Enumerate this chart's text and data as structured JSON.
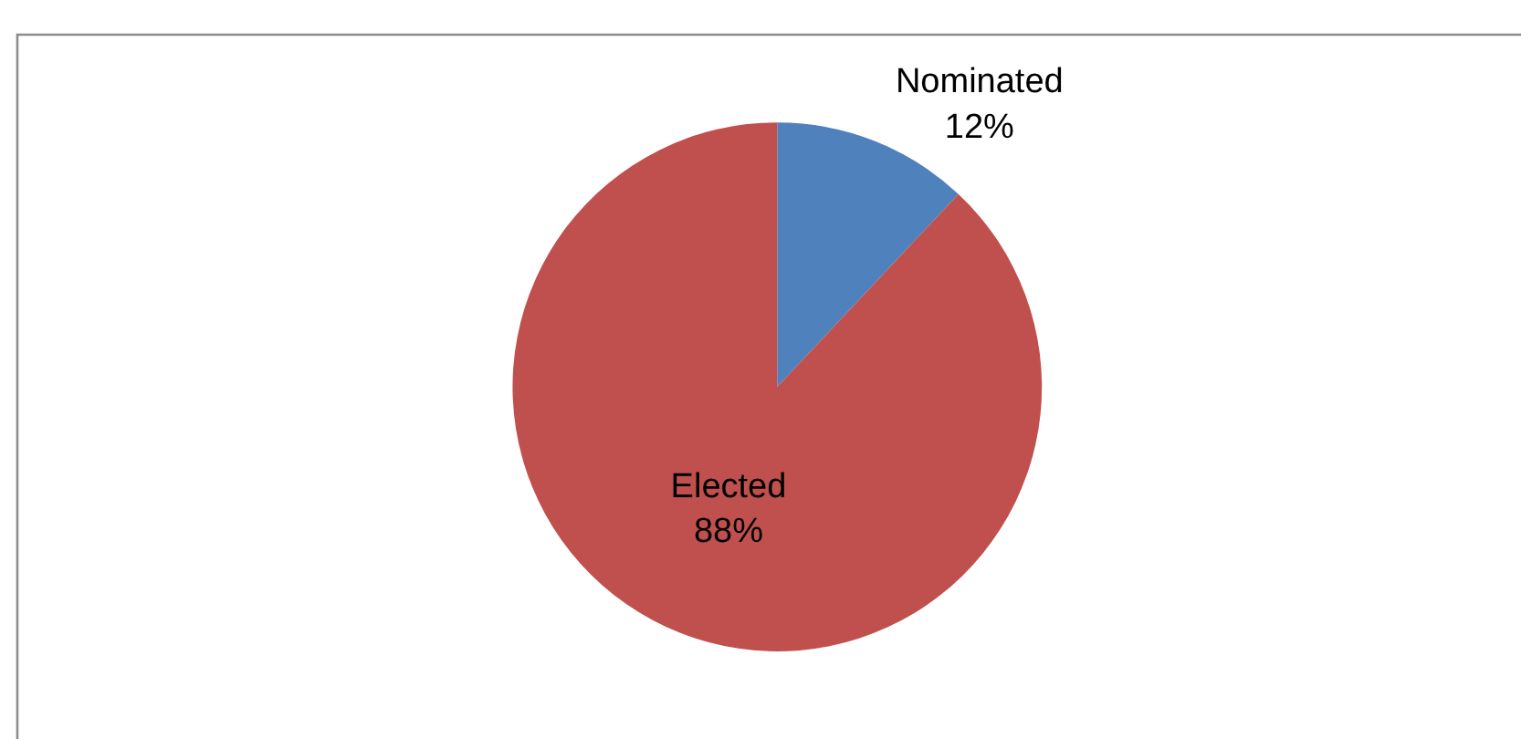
{
  "chart_data": {
    "type": "pie",
    "categories": [
      "Nominated",
      "Elected"
    ],
    "values": [
      12,
      88
    ],
    "value_labels": [
      "12%",
      "88%"
    ],
    "colors": [
      "#4f81bd",
      "#c0504d"
    ],
    "legend": false
  }
}
